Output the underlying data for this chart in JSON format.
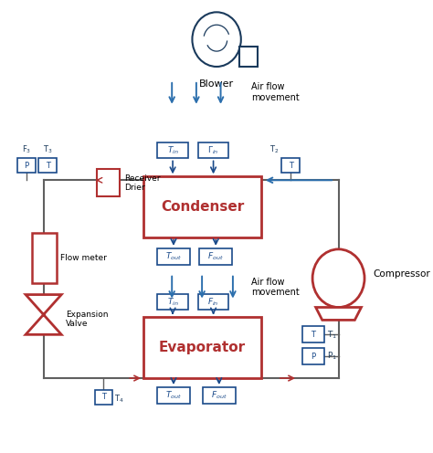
{
  "bg_color": "#ffffff",
  "dark_blue": "#1a3a5c",
  "red": "#b03030",
  "blue_box": "#1a4a8a",
  "arrow_blue": "#2c6fad",
  "gray_line": "#606060",
  "title": "Blower",
  "condenser_label": "Condenser",
  "evaporator_label": "Evaporator",
  "compressor_label": "Compressor",
  "expansion_label": "Expansion\nValve",
  "flowmeter_label": "Flow meter",
  "receiver_label": "Receiver\nDrier",
  "airflow1_label": "Air flow\nmovement",
  "airflow2_label": "Air flow\nmovement"
}
